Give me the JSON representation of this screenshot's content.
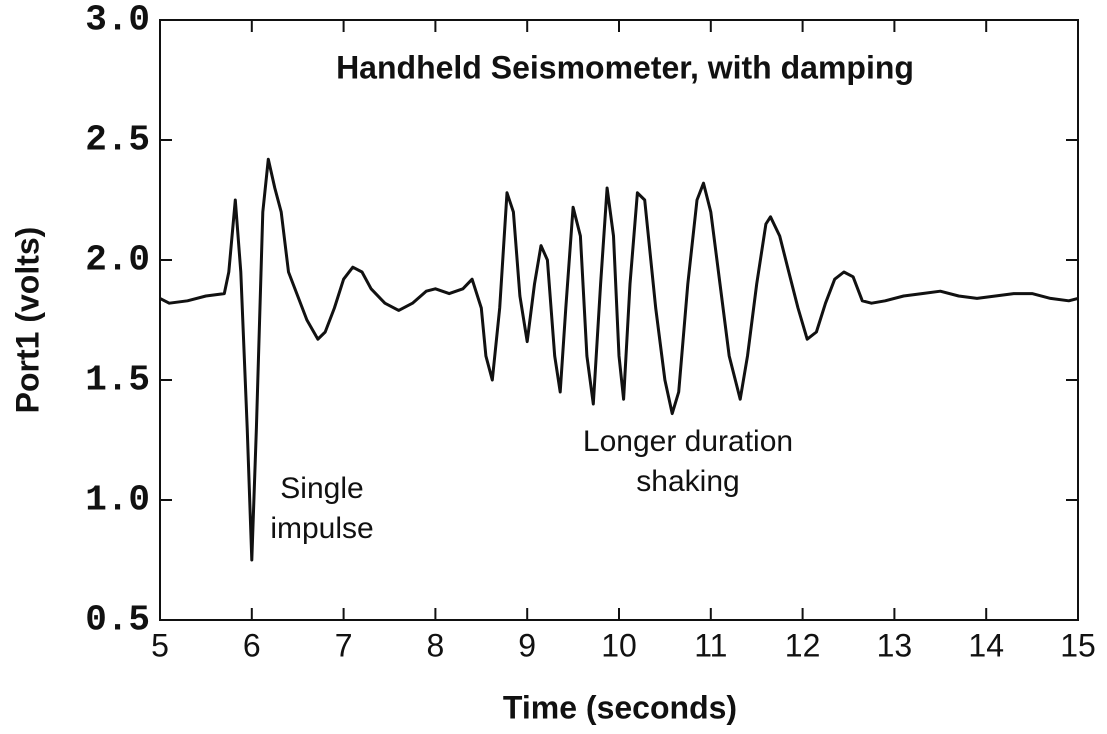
{
  "chart_data": {
    "type": "line",
    "title": "Handheld Seismometer, with damping",
    "x_label": "Time (seconds)",
    "y_label": "Port1  (volts)",
    "annotations": [
      [
        "Single",
        "impulse"
      ],
      [
        "Longer duration",
        "shaking"
      ]
    ],
    "color": "#111111",
    "xlim": [
      5,
      15
    ],
    "ylim": [
      0.5,
      3.0
    ],
    "xticks": [
      5,
      6,
      7,
      8,
      9,
      10,
      11,
      12,
      13,
      14,
      15
    ],
    "yticks": [
      {
        "value": 0.5,
        "label": "0.5"
      },
      {
        "value": 1.0,
        "label": "1.0"
      },
      {
        "value": 1.5,
        "label": "1.5"
      },
      {
        "value": 2.0,
        "label": "2.0"
      },
      {
        "value": 2.5,
        "label": "2.5"
      },
      {
        "value": 3.0,
        "label": "3.0"
      }
    ],
    "x": [
      5.0,
      5.1,
      5.3,
      5.5,
      5.7,
      5.75,
      5.82,
      5.88,
      5.95,
      6.0,
      6.05,
      6.12,
      6.18,
      6.25,
      6.32,
      6.4,
      6.5,
      6.6,
      6.72,
      6.8,
      6.9,
      7.0,
      7.1,
      7.2,
      7.3,
      7.45,
      7.6,
      7.75,
      7.9,
      8.0,
      8.15,
      8.3,
      8.4,
      8.5,
      8.55,
      8.62,
      8.7,
      8.78,
      8.85,
      8.92,
      9.0,
      9.08,
      9.15,
      9.22,
      9.3,
      9.36,
      9.42,
      9.5,
      9.58,
      9.65,
      9.72,
      9.8,
      9.87,
      9.94,
      10.0,
      10.05,
      10.12,
      10.2,
      10.28,
      10.4,
      10.5,
      10.58,
      10.65,
      10.75,
      10.85,
      10.92,
      11.0,
      11.1,
      11.2,
      11.32,
      11.4,
      11.5,
      11.6,
      11.65,
      11.75,
      11.85,
      11.95,
      12.05,
      12.15,
      12.25,
      12.35,
      12.45,
      12.55,
      12.65,
      12.75,
      12.9,
      13.1,
      13.3,
      13.5,
      13.7,
      13.9,
      14.1,
      14.3,
      14.5,
      14.7,
      14.9,
      15.0
    ],
    "values": [
      1.84,
      1.82,
      1.83,
      1.85,
      1.86,
      1.95,
      2.25,
      1.95,
      1.3,
      0.75,
      1.3,
      2.2,
      2.42,
      2.3,
      2.2,
      1.95,
      1.85,
      1.75,
      1.67,
      1.7,
      1.8,
      1.92,
      1.97,
      1.95,
      1.88,
      1.82,
      1.79,
      1.82,
      1.87,
      1.88,
      1.86,
      1.88,
      1.92,
      1.8,
      1.6,
      1.5,
      1.8,
      2.28,
      2.2,
      1.85,
      1.66,
      1.9,
      2.06,
      2.0,
      1.6,
      1.45,
      1.8,
      2.22,
      2.1,
      1.6,
      1.4,
      1.9,
      2.3,
      2.1,
      1.6,
      1.42,
      1.9,
      2.28,
      2.25,
      1.8,
      1.5,
      1.36,
      1.45,
      1.9,
      2.25,
      2.32,
      2.2,
      1.9,
      1.6,
      1.42,
      1.6,
      1.9,
      2.15,
      2.18,
      2.1,
      1.95,
      1.8,
      1.67,
      1.7,
      1.82,
      1.92,
      1.95,
      1.93,
      1.83,
      1.82,
      1.83,
      1.85,
      1.86,
      1.87,
      1.85,
      1.84,
      1.85,
      1.86,
      1.86,
      1.84,
      1.83,
      1.84
    ]
  }
}
